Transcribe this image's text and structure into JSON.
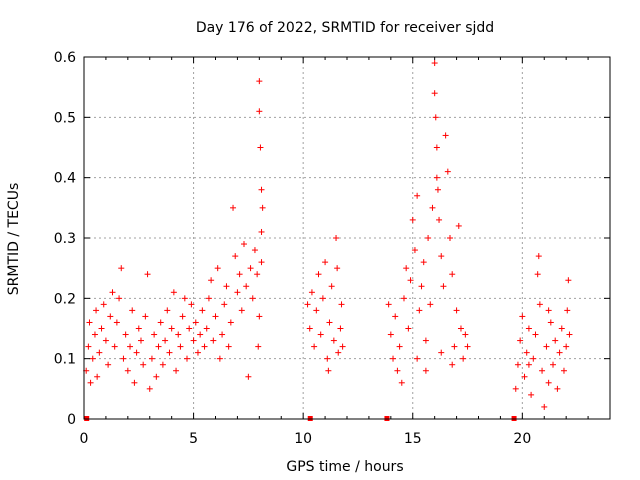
{
  "chart_data": {
    "type": "scatter",
    "title": "Day 176 of 2022, SRMTID for receiver sjdd",
    "xlabel": "GPS time / hours",
    "ylabel": "SRMTID / TECUs",
    "xlim": [
      0,
      24
    ],
    "ylim": [
      0,
      0.6
    ],
    "xticks": [
      0,
      5,
      10,
      15,
      20
    ],
    "yticks": [
      0,
      0.1,
      0.2,
      0.3,
      0.4,
      0.5,
      0.6
    ],
    "xtick_labels": [
      "0",
      "5",
      "10",
      "15",
      "20"
    ],
    "ytick_labels": [
      "0",
      "0.1",
      "0.2",
      "0.3",
      "0.4",
      "0.5",
      "0.6"
    ],
    "grid": true,
    "marker": "+",
    "color": "#ff0000",
    "series": [
      {
        "name": "SRMTID",
        "points": [
          [
            0.1,
            0.08
          ],
          [
            0.2,
            0.12
          ],
          [
            0.25,
            0.16
          ],
          [
            0.3,
            0.06
          ],
          [
            0.4,
            0.1
          ],
          [
            0.5,
            0.14
          ],
          [
            0.55,
            0.18
          ],
          [
            0.6,
            0.07
          ],
          [
            0.7,
            0.11
          ],
          [
            0.8,
            0.15
          ],
          [
            0.9,
            0.19
          ],
          [
            1.0,
            0.13
          ],
          [
            1.1,
            0.09
          ],
          [
            1.2,
            0.17
          ],
          [
            1.3,
            0.21
          ],
          [
            1.4,
            0.12
          ],
          [
            1.5,
            0.16
          ],
          [
            1.6,
            0.2
          ],
          [
            1.7,
            0.25
          ],
          [
            1.8,
            0.1
          ],
          [
            1.9,
            0.14
          ],
          [
            2.0,
            0.08
          ],
          [
            2.1,
            0.12
          ],
          [
            2.2,
            0.18
          ],
          [
            2.3,
            0.06
          ],
          [
            2.4,
            0.11
          ],
          [
            2.5,
            0.15
          ],
          [
            2.6,
            0.13
          ],
          [
            2.7,
            0.09
          ],
          [
            2.8,
            0.17
          ],
          [
            2.9,
            0.24
          ],
          [
            3.0,
            0.05
          ],
          [
            3.1,
            0.1
          ],
          [
            3.2,
            0.14
          ],
          [
            3.3,
            0.07
          ],
          [
            3.4,
            0.12
          ],
          [
            3.5,
            0.16
          ],
          [
            3.6,
            0.09
          ],
          [
            3.7,
            0.13
          ],
          [
            3.8,
            0.18
          ],
          [
            3.9,
            0.11
          ],
          [
            4.0,
            0.15
          ],
          [
            4.1,
            0.21
          ],
          [
            4.2,
            0.08
          ],
          [
            4.3,
            0.14
          ],
          [
            4.4,
            0.12
          ],
          [
            4.5,
            0.17
          ],
          [
            4.6,
            0.2
          ],
          [
            4.7,
            0.1
          ],
          [
            4.8,
            0.15
          ],
          [
            4.9,
            0.19
          ],
          [
            5.0,
            0.13
          ],
          [
            5.1,
            0.16
          ],
          [
            5.2,
            0.11
          ],
          [
            5.3,
            0.14
          ],
          [
            5.4,
            0.18
          ],
          [
            5.5,
            0.12
          ],
          [
            5.6,
            0.15
          ],
          [
            5.7,
            0.2
          ],
          [
            5.8,
            0.23
          ],
          [
            5.9,
            0.13
          ],
          [
            6.0,
            0.17
          ],
          [
            6.1,
            0.25
          ],
          [
            6.2,
            0.1
          ],
          [
            6.3,
            0.14
          ],
          [
            6.4,
            0.19
          ],
          [
            6.5,
            0.22
          ],
          [
            6.6,
            0.12
          ],
          [
            6.7,
            0.16
          ],
          [
            6.8,
            0.35
          ],
          [
            6.9,
            0.27
          ],
          [
            7.0,
            0.21
          ],
          [
            7.1,
            0.24
          ],
          [
            7.2,
            0.18
          ],
          [
            7.3,
            0.29
          ],
          [
            7.4,
            0.22
          ],
          [
            7.5,
            0.07
          ],
          [
            7.6,
            0.25
          ],
          [
            7.7,
            0.2
          ],
          [
            7.8,
            0.28
          ],
          [
            7.9,
            0.24
          ],
          [
            8.0,
            0.56
          ],
          [
            8.0,
            0.51
          ],
          [
            8.05,
            0.45
          ],
          [
            8.1,
            0.38
          ],
          [
            8.1,
            0.31
          ],
          [
            8.15,
            0.35
          ],
          [
            7.95,
            0.12
          ],
          [
            8.0,
            0.17
          ],
          [
            8.1,
            0.26
          ],
          [
            10.2,
            0.19
          ],
          [
            10.3,
            0.15
          ],
          [
            10.4,
            0.21
          ],
          [
            10.5,
            0.12
          ],
          [
            10.6,
            0.18
          ],
          [
            10.7,
            0.24
          ],
          [
            10.8,
            0.14
          ],
          [
            10.9,
            0.2
          ],
          [
            11.0,
            0.26
          ],
          [
            11.1,
            0.1
          ],
          [
            11.15,
            0.08
          ],
          [
            11.2,
            0.16
          ],
          [
            11.3,
            0.22
          ],
          [
            11.4,
            0.13
          ],
          [
            11.5,
            0.3
          ],
          [
            11.55,
            0.25
          ],
          [
            11.6,
            0.11
          ],
          [
            11.7,
            0.15
          ],
          [
            11.75,
            0.19
          ],
          [
            11.8,
            0.12
          ],
          [
            13.9,
            0.19
          ],
          [
            14.0,
            0.14
          ],
          [
            14.1,
            0.1
          ],
          [
            14.2,
            0.17
          ],
          [
            14.3,
            0.08
          ],
          [
            14.4,
            0.12
          ],
          [
            14.5,
            0.06
          ],
          [
            14.6,
            0.2
          ],
          [
            14.7,
            0.25
          ],
          [
            14.8,
            0.15
          ],
          [
            14.9,
            0.23
          ],
          [
            15.0,
            0.33
          ],
          [
            15.1,
            0.28
          ],
          [
            15.2,
            0.37
          ],
          [
            15.3,
            0.18
          ],
          [
            15.4,
            0.22
          ],
          [
            15.5,
            0.26
          ],
          [
            15.6,
            0.13
          ],
          [
            15.7,
            0.3
          ],
          [
            15.8,
            0.19
          ],
          [
            15.9,
            0.35
          ],
          [
            16.0,
            0.59
          ],
          [
            16.0,
            0.54
          ],
          [
            16.05,
            0.5
          ],
          [
            16.1,
            0.45
          ],
          [
            16.1,
            0.4
          ],
          [
            16.15,
            0.38
          ],
          [
            16.2,
            0.33
          ],
          [
            16.3,
            0.27
          ],
          [
            16.4,
            0.22
          ],
          [
            16.5,
            0.47
          ],
          [
            16.6,
            0.41
          ],
          [
            16.7,
            0.3
          ],
          [
            16.8,
            0.24
          ],
          [
            16.9,
            0.12
          ],
          [
            17.0,
            0.18
          ],
          [
            17.1,
            0.32
          ],
          [
            17.2,
            0.15
          ],
          [
            17.3,
            0.1
          ],
          [
            17.4,
            0.14
          ],
          [
            17.5,
            0.12
          ],
          [
            15.2,
            0.1
          ],
          [
            15.6,
            0.08
          ],
          [
            16.3,
            0.11
          ],
          [
            16.8,
            0.09
          ],
          [
            19.7,
            0.05
          ],
          [
            19.8,
            0.09
          ],
          [
            19.9,
            0.13
          ],
          [
            20.0,
            0.17
          ],
          [
            20.1,
            0.07
          ],
          [
            20.2,
            0.11
          ],
          [
            20.3,
            0.15
          ],
          [
            20.4,
            0.04
          ],
          [
            20.5,
            0.1
          ],
          [
            20.6,
            0.14
          ],
          [
            20.7,
            0.24
          ],
          [
            20.75,
            0.27
          ],
          [
            20.8,
            0.19
          ],
          [
            20.9,
            0.08
          ],
          [
            21.0,
            0.02
          ],
          [
            21.1,
            0.12
          ],
          [
            21.2,
            0.06
          ],
          [
            21.3,
            0.16
          ],
          [
            21.4,
            0.09
          ],
          [
            21.5,
            0.13
          ],
          [
            21.6,
            0.05
          ],
          [
            21.7,
            0.11
          ],
          [
            21.8,
            0.15
          ],
          [
            21.9,
            0.08
          ],
          [
            22.0,
            0.12
          ],
          [
            22.05,
            0.18
          ],
          [
            22.1,
            0.23
          ],
          [
            22.15,
            0.14
          ],
          [
            21.2,
            0.18
          ],
          [
            20.3,
            0.09
          ]
        ]
      }
    ],
    "baseline_markers": [
      0.1,
      10.3,
      13.8,
      19.6
    ]
  }
}
